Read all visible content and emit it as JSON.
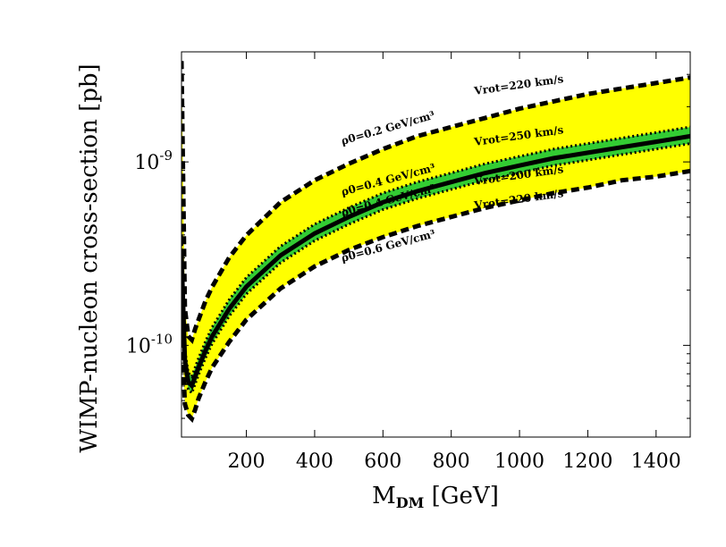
{
  "chart_data": {
    "type": "line",
    "title": "",
    "xlabel": "M",
    "xlabel_sub": "DM",
    "xlabel_unit": "[GeV]",
    "ylabel": "WIMP-nucleon cross-section [pb]",
    "xlim": [
      10,
      1500
    ],
    "ylim_log10": [
      -10.5,
      -8.4
    ],
    "x_ticks": [
      200,
      400,
      600,
      800,
      1000,
      1200,
      1400
    ],
    "x_tick_labels": [
      "200",
      "400",
      "600",
      "800",
      "1000",
      "1200",
      "1400"
    ],
    "y_ticks_log10": [
      -10,
      -9
    ],
    "y_tick_labels": [
      {
        "base": "10",
        "exp": "-10"
      },
      {
        "base": "10",
        "exp": "-9"
      }
    ],
    "x": [
      10,
      20,
      30,
      40,
      50,
      60,
      80,
      100,
      150,
      200,
      300,
      400,
      500,
      600,
      700,
      800,
      900,
      1000,
      1100,
      1200,
      1300,
      1400,
      1500
    ],
    "series": [
      {
        "name": "central",
        "color": "#000000",
        "style": "solid",
        "values_log10": [
          -9.5,
          -10.08,
          -10.2,
          -10.22,
          -10.17,
          -10.12,
          -10.03,
          -9.95,
          -9.8,
          -9.68,
          -9.51,
          -9.39,
          -9.3,
          -9.22,
          -9.16,
          -9.11,
          -9.06,
          -9.02,
          -8.98,
          -8.95,
          -8.92,
          -8.89,
          -8.86
        ]
      },
      {
        "name": "ρ0=0.2 GeV/cm3, Vrot=220 km/s",
        "color": "#000000",
        "style": "dashed",
        "values_log10": [
          -8.45,
          -9.8,
          -9.95,
          -9.97,
          -9.91,
          -9.86,
          -9.76,
          -9.68,
          -9.52,
          -9.4,
          -9.22,
          -9.1,
          -9.01,
          -8.93,
          -8.86,
          -8.81,
          -8.76,
          -8.71,
          -8.67,
          -8.63,
          -8.6,
          -8.57,
          -8.54
        ]
      },
      {
        "name": "ρ0=0.6 GeV/cm3, Vrot=220 km/s",
        "color": "#000000",
        "style": "dashed",
        "values_log10": [
          -9.9,
          -10.32,
          -10.38,
          -10.4,
          -10.35,
          -10.29,
          -10.2,
          -10.12,
          -9.98,
          -9.86,
          -9.69,
          -9.57,
          -9.48,
          -9.41,
          -9.35,
          -9.3,
          -9.25,
          -9.21,
          -9.17,
          -9.14,
          -9.1,
          -9.08,
          -9.05
        ]
      },
      {
        "name": "ρ0=0.4 GeV/cm3, Vrot=250 km/s",
        "color": "#000000",
        "style": "dotted",
        "values_log10": [
          -9.4,
          -10.03,
          -10.15,
          -10.17,
          -10.12,
          -10.07,
          -9.98,
          -9.9,
          -9.75,
          -9.63,
          -9.46,
          -9.34,
          -9.25,
          -9.17,
          -9.11,
          -9.06,
          -9.01,
          -8.97,
          -8.93,
          -8.9,
          -8.87,
          -8.84,
          -8.81
        ]
      },
      {
        "name": "ρ0=0.4 GeV/cm3, Vrot=200 km/s",
        "color": "#000000",
        "style": "dotted",
        "values_log10": [
          -9.55,
          -10.12,
          -10.24,
          -10.26,
          -10.21,
          -10.16,
          -10.07,
          -9.99,
          -9.84,
          -9.72,
          -9.55,
          -9.43,
          -9.34,
          -9.26,
          -9.2,
          -9.15,
          -9.1,
          -9.06,
          -9.02,
          -8.99,
          -8.96,
          -8.93,
          -8.9
        ]
      }
    ],
    "bands": [
      {
        "name": "yellow band",
        "color": "#ffff00",
        "upper": "ρ0=0.2 GeV/cm3, Vrot=220 km/s",
        "lower": "ρ0=0.6 GeV/cm3, Vrot=220 km/s"
      },
      {
        "name": "green band",
        "color": "#33cc33",
        "upper": "ρ0=0.4 GeV/cm3, Vrot=250 km/s",
        "lower": "ρ0=0.4 GeV/cm3, Vrot=200 km/s"
      }
    ],
    "annotations": [
      {
        "id": "rho02",
        "text": "ρ0=0.2 GeV/cm³",
        "angle": -16
      },
      {
        "id": "vrot220a",
        "text": "Vrot=220 km/s",
        "angle": -8
      },
      {
        "id": "rho04a",
        "text": "ρ0=0.4 GeV/cm³",
        "angle": -15
      },
      {
        "id": "vrot250",
        "text": "Vrot=250 km/s",
        "angle": -8
      },
      {
        "id": "rho04b",
        "text": "ρ0=0.4 GeV/cm³",
        "angle": -15
      },
      {
        "id": "vrot200",
        "text": "Vrot=200 km/s",
        "angle": -8
      },
      {
        "id": "rho06",
        "text": "ρ0=0.6 GeV/cm³",
        "angle": -15
      },
      {
        "id": "vrot220b",
        "text": "Vrot=220 km/s",
        "angle": -8
      }
    ]
  }
}
